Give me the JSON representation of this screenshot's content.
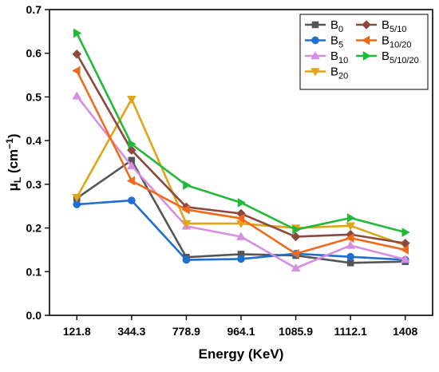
{
  "chart_data": {
    "type": "line",
    "title": "",
    "xlabel": "Energy (KeV)",
    "ylabel": {
      "base": "μ",
      "sub": "L",
      "unit_open": " (cm",
      "unit_sup": "−1",
      "unit_close": ")"
    },
    "categories": [
      "121.8",
      "344.3",
      "778.9",
      "964.1",
      "1085.9",
      "1112.1",
      "1408"
    ],
    "ylim": [
      0.0,
      0.7
    ],
    "yticks": [
      "0.0",
      "0.1",
      "0.2",
      "0.3",
      "0.4",
      "0.5",
      "0.6",
      "0.7"
    ],
    "ytick_values": [
      0.0,
      0.1,
      0.2,
      0.3,
      0.4,
      0.5,
      0.6,
      0.7
    ],
    "grid": false,
    "legend_position": "top-right",
    "series": [
      {
        "base": "B",
        "sub": "0",
        "color": "#555555",
        "marker": "square",
        "values": [
          0.268,
          0.355,
          0.133,
          0.14,
          0.137,
          0.12,
          0.123
        ]
      },
      {
        "base": "B",
        "sub": "5",
        "color": "#1f6fd0",
        "marker": "circle",
        "values": [
          0.254,
          0.263,
          0.127,
          0.129,
          0.141,
          0.134,
          0.127
        ]
      },
      {
        "base": "B",
        "sub": "10",
        "color": "#d68fe0",
        "marker": "triangle-up",
        "values": [
          0.502,
          0.342,
          0.204,
          0.18,
          0.108,
          0.16,
          0.128
        ]
      },
      {
        "base": "B",
        "sub": "20",
        "color": "#e1a318",
        "marker": "triangle-down",
        "values": [
          0.27,
          0.495,
          0.21,
          0.21,
          0.2,
          0.205,
          0.16
        ]
      },
      {
        "base": "B",
        "sub": "5/10",
        "color": "#8b4a3c",
        "marker": "diamond",
        "values": [
          0.598,
          0.378,
          0.248,
          0.233,
          0.18,
          0.185,
          0.165
        ]
      },
      {
        "base": "B",
        "sub": "10/20",
        "color": "#f06a1c",
        "marker": "triangle-left",
        "values": [
          0.56,
          0.308,
          0.242,
          0.222,
          0.141,
          0.177,
          0.15
        ]
      },
      {
        "base": "B",
        "sub": "5/10/20",
        "color": "#22b83a",
        "marker": "triangle-right",
        "values": [
          0.646,
          0.392,
          0.298,
          0.258,
          0.196,
          0.223,
          0.19
        ]
      }
    ]
  }
}
